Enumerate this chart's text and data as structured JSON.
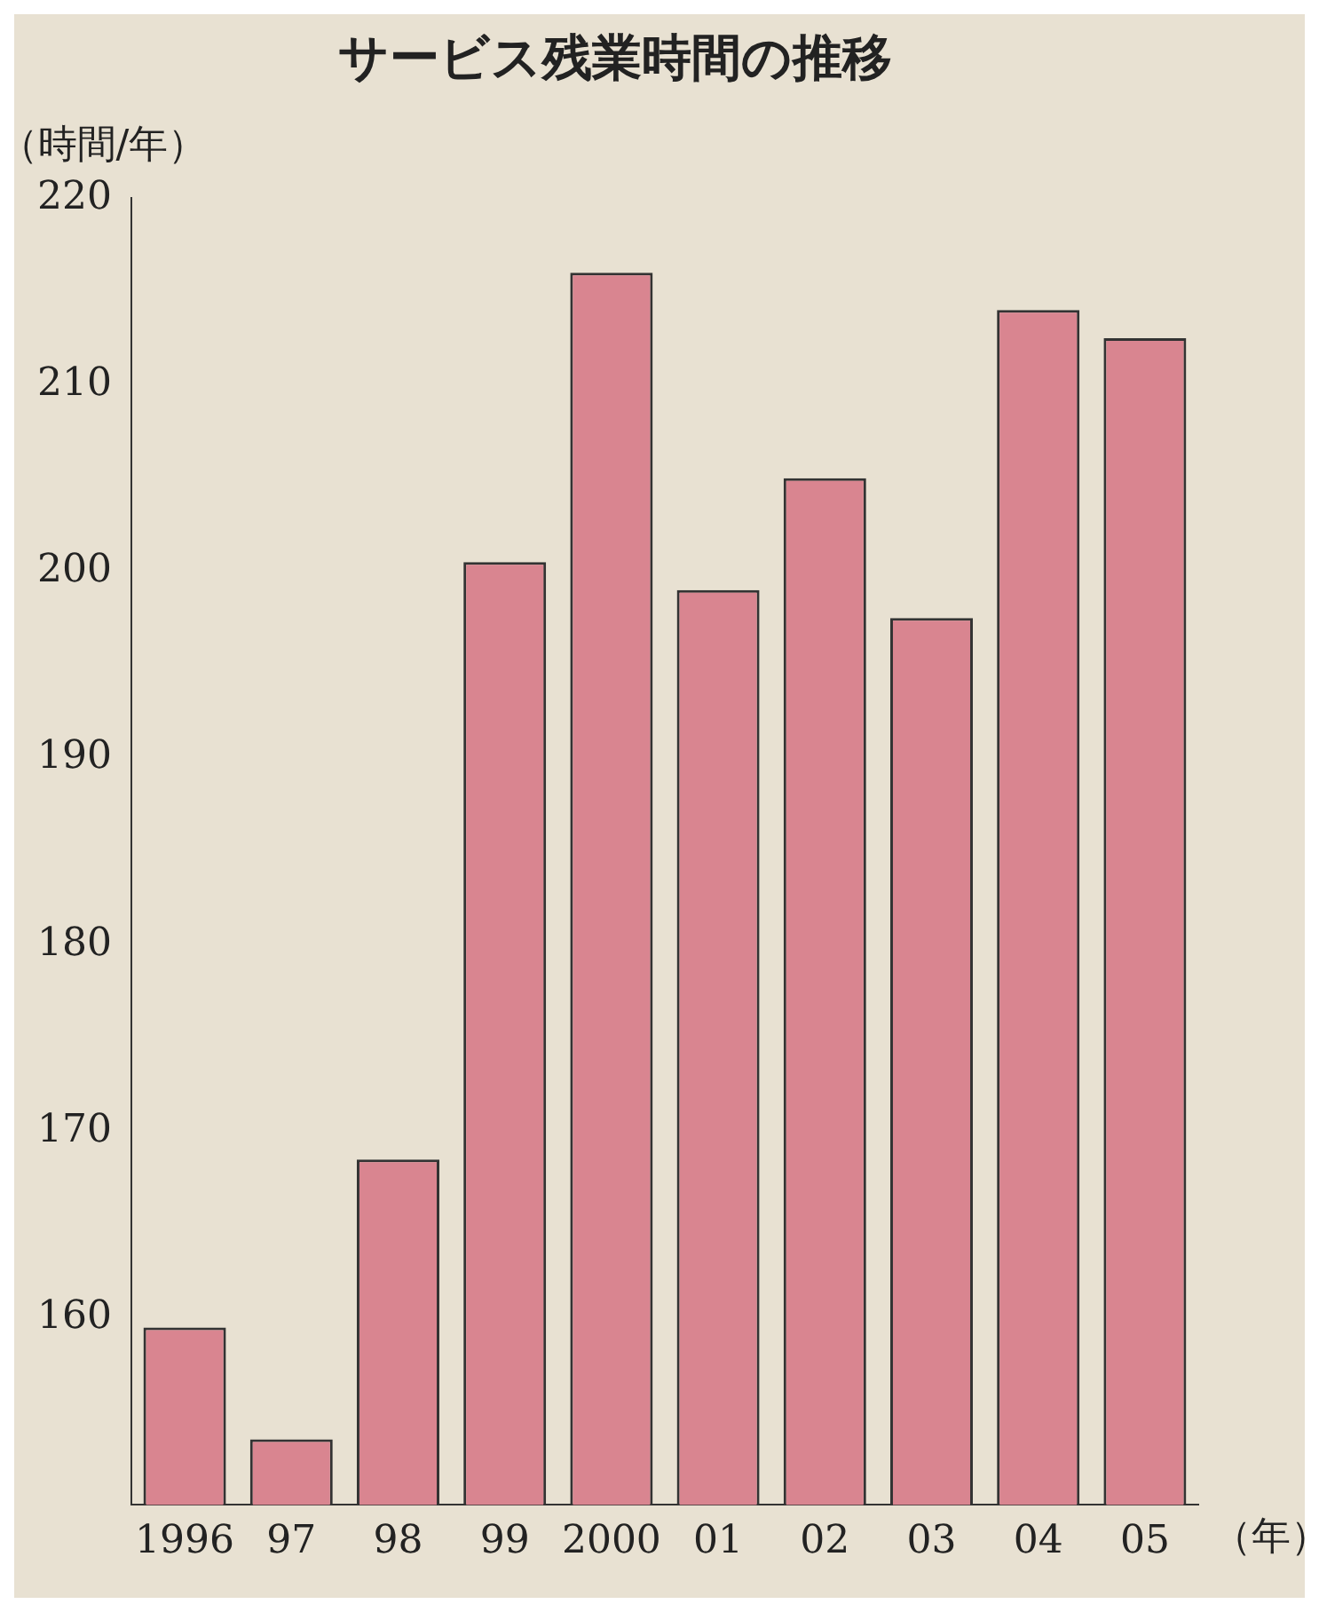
{
  "chart_data": {
    "type": "bar",
    "title": "サービス残業時間の推移",
    "ylabel": "（時間/年）",
    "xlabel": "（年）",
    "categories": [
      "1996",
      "97",
      "98",
      "99",
      "2000",
      "01",
      "02",
      "03",
      "04",
      "05"
    ],
    "values": [
      159.5,
      153.5,
      168.5,
      200.5,
      216,
      199,
      205,
      197.5,
      214,
      212.5
    ],
    "color": "#d98590",
    "ylim": [
      150,
      220
    ],
    "yticks": [
      160,
      170,
      180,
      190,
      200,
      210,
      220
    ],
    "grid": false,
    "legend": false
  }
}
